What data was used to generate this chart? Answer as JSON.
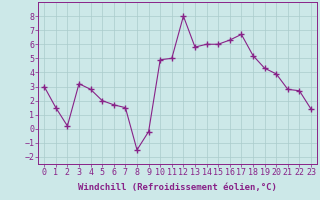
{
  "x": [
    0,
    1,
    2,
    3,
    4,
    5,
    6,
    7,
    8,
    9,
    10,
    11,
    12,
    13,
    14,
    15,
    16,
    17,
    18,
    19,
    20,
    21,
    22,
    23
  ],
  "y": [
    3.0,
    1.5,
    0.2,
    3.2,
    2.8,
    2.0,
    1.7,
    1.5,
    -1.5,
    -0.2,
    4.9,
    5.0,
    8.0,
    5.8,
    6.0,
    6.0,
    6.3,
    6.7,
    5.2,
    4.3,
    3.9,
    2.8,
    2.7,
    1.4
  ],
  "line_color": "#882288",
  "marker": "+",
  "marker_size": 5,
  "background_color": "#cce8e8",
  "grid_color": "#aacccc",
  "xlabel": "Windchill (Refroidissement éolien,°C)",
  "xlabel_fontsize": 6.5,
  "tick_fontsize": 6.0,
  "ylim": [
    -2.5,
    9.0
  ],
  "xlim": [
    -0.5,
    23.5
  ],
  "yticks": [
    -2,
    -1,
    0,
    1,
    2,
    3,
    4,
    5,
    6,
    7,
    8
  ],
  "xticks": [
    0,
    1,
    2,
    3,
    4,
    5,
    6,
    7,
    8,
    9,
    10,
    11,
    12,
    13,
    14,
    15,
    16,
    17,
    18,
    19,
    20,
    21,
    22,
    23
  ]
}
